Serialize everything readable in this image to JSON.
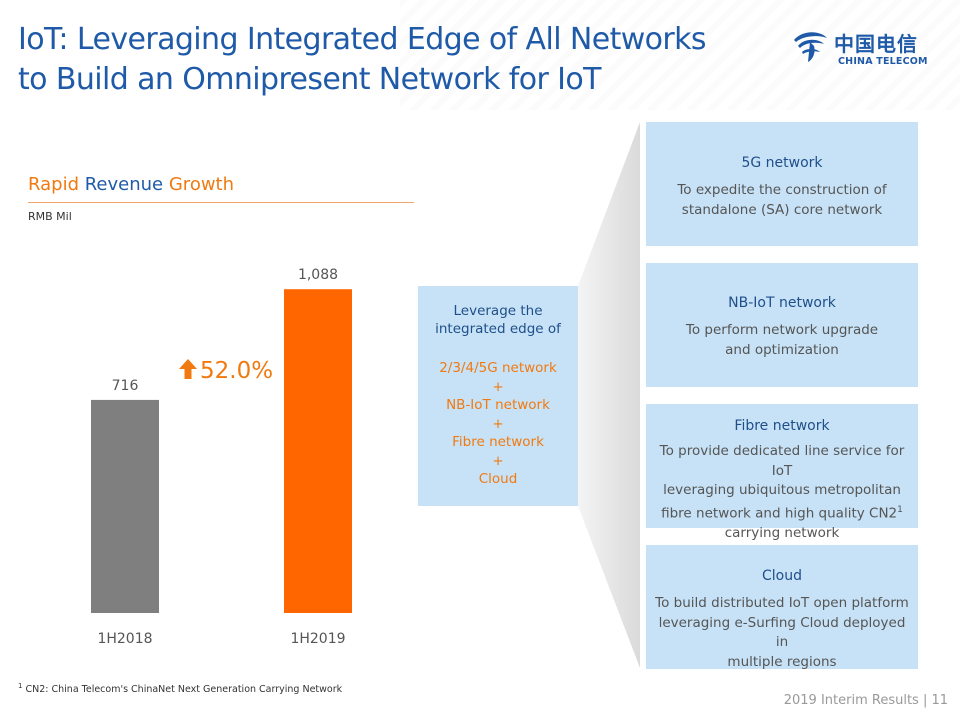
{
  "slide": {
    "title_line1": "IoT: Leveraging Integrated Edge of All Networks",
    "title_line2": "to Build an Omnipresent Network for IoT",
    "logo_cn": "中国电信",
    "logo_en": "CHINA TELECOM"
  },
  "chart": {
    "title_part1": "Rapid",
    "title_part2": "Revenue",
    "title_part3": "Growth",
    "unit": "RMB Mil",
    "growth_label": "52.0%"
  },
  "chart_data": {
    "type": "bar",
    "categories": [
      "1H2018",
      "1H2019"
    ],
    "values": [
      716,
      1088
    ],
    "value_labels": [
      "716",
      "1,088"
    ],
    "colors": [
      "#7f7f7f",
      "#ff6600"
    ],
    "title": "Rapid Revenue Growth",
    "ylabel": "RMB Mil",
    "ylim": [
      0,
      1250
    ]
  },
  "center": {
    "heading_line1": "Leverage the",
    "heading_line2": "integrated edge of",
    "items": [
      "2/3/4/5G network",
      "+",
      "NB-IoT network",
      "+",
      "Fibre network",
      "+",
      "Cloud"
    ]
  },
  "cards": [
    {
      "title": "5G network",
      "desc_lines": [
        "To expedite the construction of",
        "standalone (SA) core network"
      ]
    },
    {
      "title": "NB-IoT network",
      "desc_lines": [
        "To perform network upgrade",
        "and optimization"
      ]
    },
    {
      "title": "Fibre network",
      "desc_lines": [
        "To provide dedicated line service for IoT",
        "leveraging ubiquitous metropolitan",
        "fibre network and high quality CN2",
        "carrying network"
      ],
      "sup": "1"
    },
    {
      "title": "Cloud",
      "desc_lines": [
        "To build distributed IoT open platform",
        "leveraging e-Surfing Cloud deployed in",
        "multiple regions"
      ]
    }
  ],
  "footnote": {
    "marker": "1",
    "text": "CN2: China Telecom's ChinaNet Next Generation Carrying Network"
  },
  "footer": {
    "text": "2019 Interim Results | 11"
  },
  "colors": {
    "brand_blue": "#1f5aa8",
    "accent_orange": "#f07a10",
    "box_blue": "#c7e2f6",
    "funnel_grey": "#e8e8e8"
  }
}
